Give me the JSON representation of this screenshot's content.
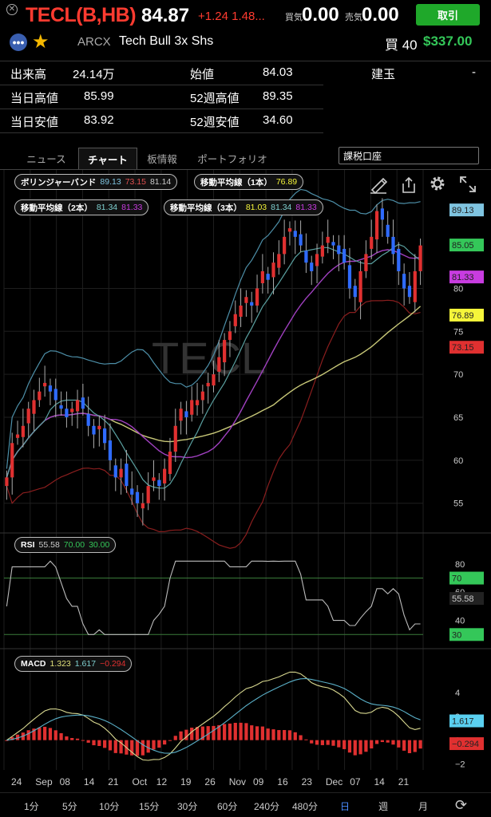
{
  "header": {
    "title": "TECL(B,HB)",
    "price": "84.87",
    "change": "+1.24 1.48...",
    "bid_label": "買気",
    "bid_value": "0.00",
    "ask_label": "売気",
    "ask_value": "0.00",
    "trade_button": "取引",
    "exchange": "ARCX",
    "name": "Tech Bull 3x Shs",
    "position_label": "買 40",
    "position_value": "$337.00"
  },
  "stats": [
    {
      "label": "出来高",
      "value": "24.14万"
    },
    {
      "label": "始値",
      "value": "84.03"
    },
    {
      "label": "建玉",
      "value": "-"
    },
    {
      "label": "当日高値",
      "value": "85.99"
    },
    {
      "label": "52週高値",
      "value": "89.35"
    },
    {
      "label": "当日安値",
      "value": "83.92"
    },
    {
      "label": "52週安値",
      "value": "34.60"
    }
  ],
  "tabs": [
    "ニュース",
    "チャート",
    "板情報",
    "ポートフォリオ"
  ],
  "active_tab": "チャート",
  "account": "課税口座",
  "indicators": {
    "bollinger": {
      "label": "ボリンジャーバンド",
      "v1": "89.13",
      "v2": "73.15",
      "v3": "81.14"
    },
    "ma1": {
      "label": "移動平均線（1本）",
      "v1": "76.89"
    },
    "ma2": {
      "label": "移動平均線（2本）",
      "v1": "81.34",
      "v2": "81.33"
    },
    "ma3": {
      "label": "移動平均線（3本）",
      "v1": "81.03",
      "v2": "81.34",
      "v3": "81.33"
    },
    "rsi": {
      "label": "RSI",
      "v1": "55.58",
      "v2": "70.00",
      "v3": "30.00"
    },
    "macd": {
      "label": "MACD",
      "v1": "1.323",
      "v2": "1.617",
      "v3": "−0.294"
    }
  },
  "watermark": "TECL",
  "price_axis": {
    "ticks": [
      "55",
      "60",
      "65",
      "70",
      "75",
      "80"
    ],
    "badges": [
      {
        "text": "89.13",
        "color": "#7fc4e0"
      },
      {
        "text": "85.05",
        "color": "#34c759"
      },
      {
        "text": "81.33",
        "color": "#c83ce0"
      },
      {
        "text": "76.89",
        "color": "#f5f53a"
      },
      {
        "text": "73.15",
        "color": "#e03030"
      }
    ]
  },
  "rsi_axis": {
    "ticks": [
      "80",
      "60",
      "40"
    ],
    "badges": [
      {
        "text": "70",
        "color": "#34c759"
      },
      {
        "text": "55.58",
        "color": "#222"
      },
      {
        "text": "30",
        "color": "#34c759"
      }
    ]
  },
  "macd_axis": {
    "ticks": [
      "4",
      "2",
      "0",
      "−2"
    ],
    "badges": [
      {
        "text": "1.617",
        "color": "#5ad0f0"
      },
      {
        "text": "−0.294",
        "color": "#e03030"
      }
    ]
  },
  "x_axis": [
    "24",
    "Sep",
    "08",
    "14",
    "21",
    "Oct",
    "12",
    "19",
    "26",
    "Nov",
    "09",
    "16",
    "23",
    "Dec",
    "07",
    "14",
    "21"
  ],
  "timeframes": [
    "1分",
    "5分",
    "10分",
    "15分",
    "30分",
    "60分",
    "240分",
    "480分",
    "日",
    "週",
    "月"
  ],
  "active_timeframe": "日",
  "colors": {
    "up": "#e03030",
    "down": "#2f6bff",
    "accent": "#1fa82a"
  },
  "chart_data": {
    "type": "candlestick",
    "y_range": [
      52,
      91
    ],
    "closes": [
      58,
      62,
      63,
      64,
      66,
      67,
      68,
      69,
      68,
      67,
      66,
      65,
      66,
      67,
      66,
      64,
      63,
      64,
      62,
      60,
      58,
      59,
      57,
      56,
      55,
      55,
      57,
      58,
      57,
      59,
      61,
      64,
      66,
      65,
      67,
      67,
      68,
      69,
      70,
      72,
      74,
      75,
      77,
      78,
      79,
      78,
      80,
      82,
      81,
      83,
      84,
      86,
      87,
      86,
      85,
      83,
      82,
      84,
      85,
      86,
      85,
      84,
      83,
      80,
      79,
      82,
      84,
      86,
      89,
      88,
      86,
      84,
      82,
      80,
      79,
      82,
      85
    ]
  }
}
